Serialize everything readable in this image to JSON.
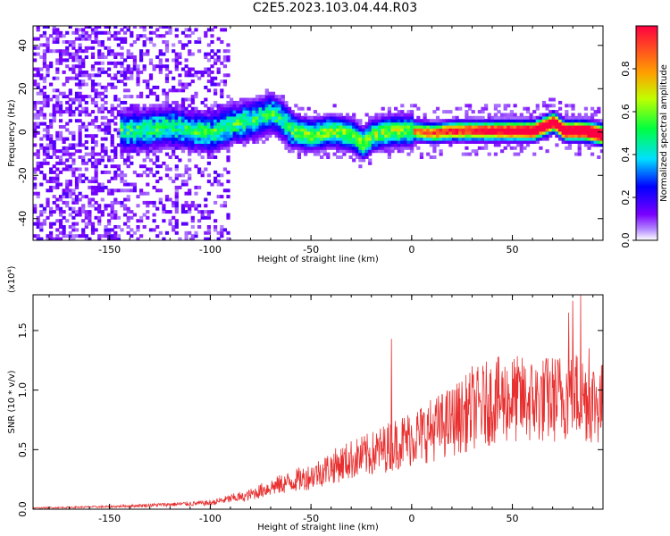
{
  "title": "C2E5.2023.103.04.44.R03",
  "chart_data": [
    {
      "type": "heatmap",
      "name": "spectrogram",
      "xlabel": "Height of straight line (km)",
      "ylabel": "Frequency (Hz)",
      "xlim": [
        -188,
        95
      ],
      "ylim": [
        -50,
        49
      ],
      "x_ticks": [
        -150,
        -100,
        -50,
        0,
        50
      ],
      "y_ticks": [
        -40,
        -20,
        0,
        20,
        40
      ],
      "colorbar": {
        "label": "Normalized spectral amplitude",
        "range": [
          0,
          1
        ],
        "ticks": [
          "0.0",
          "0.2",
          "0.4",
          "0.6",
          "0.8"
        ]
      },
      "ridge_frequency": [
        [
          -140,
          0
        ],
        [
          -120,
          2
        ],
        [
          -110,
          0
        ],
        [
          -100,
          -1
        ],
        [
          -90,
          3
        ],
        [
          -80,
          5
        ],
        [
          -70,
          8
        ],
        [
          -66,
          6
        ],
        [
          -60,
          0
        ],
        [
          -50,
          -2
        ],
        [
          -40,
          0
        ],
        [
          -30,
          -2
        ],
        [
          -25,
          -6
        ],
        [
          -20,
          -2
        ],
        [
          -10,
          0
        ],
        [
          0,
          0
        ],
        [
          10,
          -1
        ],
        [
          20,
          0
        ],
        [
          40,
          0
        ],
        [
          60,
          0
        ],
        [
          70,
          4
        ],
        [
          75,
          0
        ],
        [
          85,
          0
        ],
        [
          95,
          -2
        ]
      ]
    },
    {
      "type": "line",
      "name": "snr",
      "xlabel": "Height of straight line (km)",
      "ylabel": "SNR (10 * v/v)",
      "y_multiplier": "(x10⁴)",
      "xlim": [
        -188,
        95
      ],
      "ylim": [
        0,
        1.8
      ],
      "x_ticks": [
        -150,
        -100,
        -50,
        0,
        50
      ],
      "y_ticks": [
        "0.0",
        "0.5",
        "1.0",
        "1.5"
      ],
      "color": "#e83030",
      "envelope": [
        [
          -188,
          0.01
        ],
        [
          -150,
          0.02
        ],
        [
          -100,
          0.05
        ],
        [
          -85,
          0.1
        ],
        [
          -70,
          0.2
        ],
        [
          -60,
          0.25
        ],
        [
          -50,
          0.3
        ],
        [
          -40,
          0.38
        ],
        [
          -30,
          0.45
        ],
        [
          -20,
          0.5
        ],
        [
          -10,
          0.58
        ],
        [
          0,
          0.65
        ],
        [
          10,
          0.72
        ],
        [
          20,
          0.8
        ],
        [
          30,
          0.9
        ],
        [
          40,
          0.98
        ],
        [
          50,
          1.0
        ],
        [
          60,
          0.98
        ],
        [
          70,
          1.0
        ],
        [
          80,
          1.05
        ],
        [
          95,
          0.95
        ]
      ],
      "spikes": [
        [
          -10,
          1.43
        ],
        [
          30,
          1.2
        ],
        [
          42,
          1.15
        ],
        [
          67,
          1.25
        ],
        [
          78,
          1.65
        ],
        [
          80,
          1.75
        ],
        [
          84,
          1.8
        ],
        [
          88,
          1.35
        ]
      ]
    }
  ]
}
